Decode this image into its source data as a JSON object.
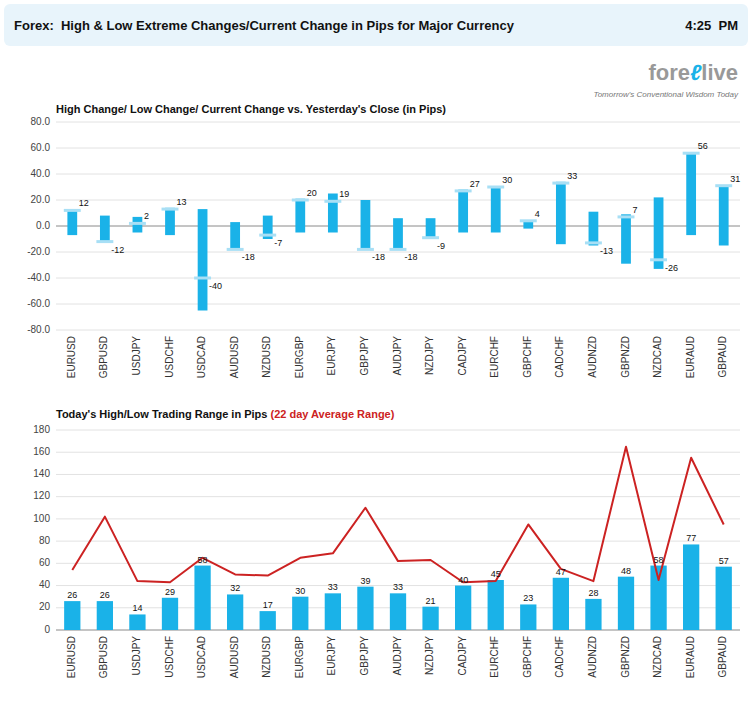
{
  "chart_data": [
    {
      "type": "range",
      "title": "Forex:  High & Low Extreme Changes/Current Change in Pips for Major Currency",
      "subtitle": "High Change/ Low Change/ Current Change vs. Yesterday's Close (in Pips)",
      "annotations": [
        "4:25  PM",
        "fore",
        "ℓ",
        "live",
        "Tomorrow's Conventional Wisdom Today"
      ],
      "categories": [
        "EURUSD",
        "GBPUSD",
        "USDJPY",
        "USDCHF",
        "USDCAD",
        "AUDUSD",
        "NZDUSD",
        "EURGBP",
        "EURJPY",
        "GBPJPY",
        "AUDJPY",
        "NZDJPY",
        "CADJPY",
        "EURCHF",
        "GBPCHF",
        "CADCHF",
        "AUDNZD",
        "GBPNZD",
        "NZDCAD",
        "EURAUD",
        "GBPAUD"
      ],
      "series": [
        {
          "color": "#1ab2e8",
          "high": [
            12,
            8,
            7,
            14,
            13,
            3,
            8,
            21,
            25,
            20,
            6,
            6,
            28,
            30,
            4,
            34,
            11,
            9,
            22,
            56,
            31
          ],
          "low": [
            -7,
            -12,
            -5,
            -7,
            -65,
            -18,
            -10,
            -5,
            -5,
            -18,
            -18,
            -9,
            -5,
            -5,
            -2,
            -14,
            -15,
            -29,
            -33,
            -7,
            -15
          ]
        },
        {
          "type": "tick",
          "color": "#a8dff5",
          "data_labels": true,
          "values": [
            12,
            -12,
            2,
            13,
            -40,
            -18,
            -7,
            20,
            19,
            -18,
            -18,
            -9,
            27,
            30,
            4,
            33,
            -13,
            7,
            -26,
            56,
            31
          ]
        }
      ],
      "ylim": [
        -80,
        80
      ],
      "yticks": [
        {
          "value": -80,
          "label": "-80.0"
        },
        {
          "value": -60,
          "label": "-60.0"
        },
        {
          "value": -40,
          "label": "-40.0"
        },
        {
          "value": -20,
          "label": "-20.0"
        },
        {
          "value": 0,
          "label": "0.0"
        },
        {
          "value": 20,
          "label": "20.0"
        },
        {
          "value": 40,
          "label": "40.0"
        },
        {
          "value": 60,
          "label": "60.0"
        },
        {
          "value": 80,
          "label": "80.0"
        }
      ],
      "grid": true
    },
    {
      "type": "bar",
      "title": "Today's High/Low Trading Range in Pips ",
      "subtitle": "(22 day Average Range)",
      "categories": [
        "EURUSD",
        "GBPUSD",
        "USDJPY",
        "USDCHF",
        "USDCAD",
        "AUDUSD",
        "NZDUSD",
        "EURGBP",
        "EURJPY",
        "GBPJPY",
        "AUDJPY",
        "NZDJPY",
        "CADJPY",
        "EURCHF",
        "GBPCHF",
        "CADCHF",
        "AUDNZD",
        "GBPNZD",
        "NZDCAD",
        "EURAUD",
        "GBPAUD"
      ],
      "series": [
        {
          "color": "#1ab2e8",
          "data_labels": true,
          "values": [
            26,
            26,
            14,
            29,
            58,
            32,
            17,
            30,
            33,
            39,
            33,
            21,
            40,
            45,
            23,
            47,
            28,
            48,
            58,
            77,
            57
          ]
        },
        {
          "type": "line",
          "color": "#cc2222",
          "values": [
            54,
            102,
            44,
            43,
            65,
            50,
            49,
            65,
            69,
            110,
            62,
            63,
            43,
            44,
            95,
            55,
            44,
            165,
            45,
            155,
            95
          ]
        }
      ],
      "ylim": [
        0,
        180
      ],
      "yticks": [
        0,
        20,
        40,
        60,
        80,
        100,
        120,
        140,
        160,
        180
      ],
      "grid": true
    }
  ]
}
